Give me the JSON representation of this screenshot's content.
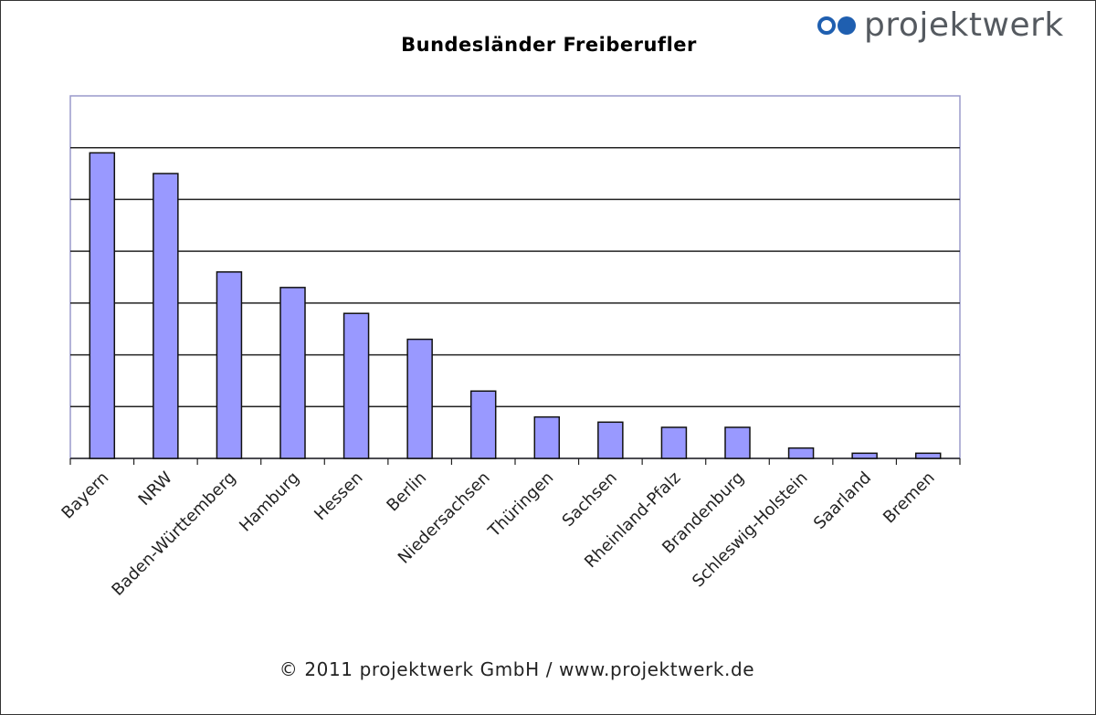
{
  "chart_data": {
    "type": "bar",
    "title": "Bundesländer Freiberufler",
    "categories": [
      "Bayern",
      "NRW",
      "Baden-Württemberg",
      "Hamburg",
      "Hessen",
      "Berlin",
      "Niedersachsen",
      "Thüringen",
      "Sachsen",
      "Rheinland-Pfalz",
      "Brandenburg",
      "Schleswig-Holstein",
      "Saarland",
      "Bremen"
    ],
    "values": [
      5.9,
      5.5,
      3.6,
      3.3,
      2.8,
      2.3,
      1.3,
      0.8,
      0.7,
      0.6,
      0.6,
      0.2,
      0.1,
      0.1
    ],
    "ylim": [
      0,
      7
    ],
    "y_tick_labels_shown": false,
    "grid": true,
    "bar_color": "#9999ff",
    "xlabel": "",
    "ylabel": ""
  },
  "logo": {
    "text": "projektwerk",
    "color": "#1f5fb0"
  },
  "footer": "© 2011 projektwerk GmbH / www.projektwerk.de"
}
